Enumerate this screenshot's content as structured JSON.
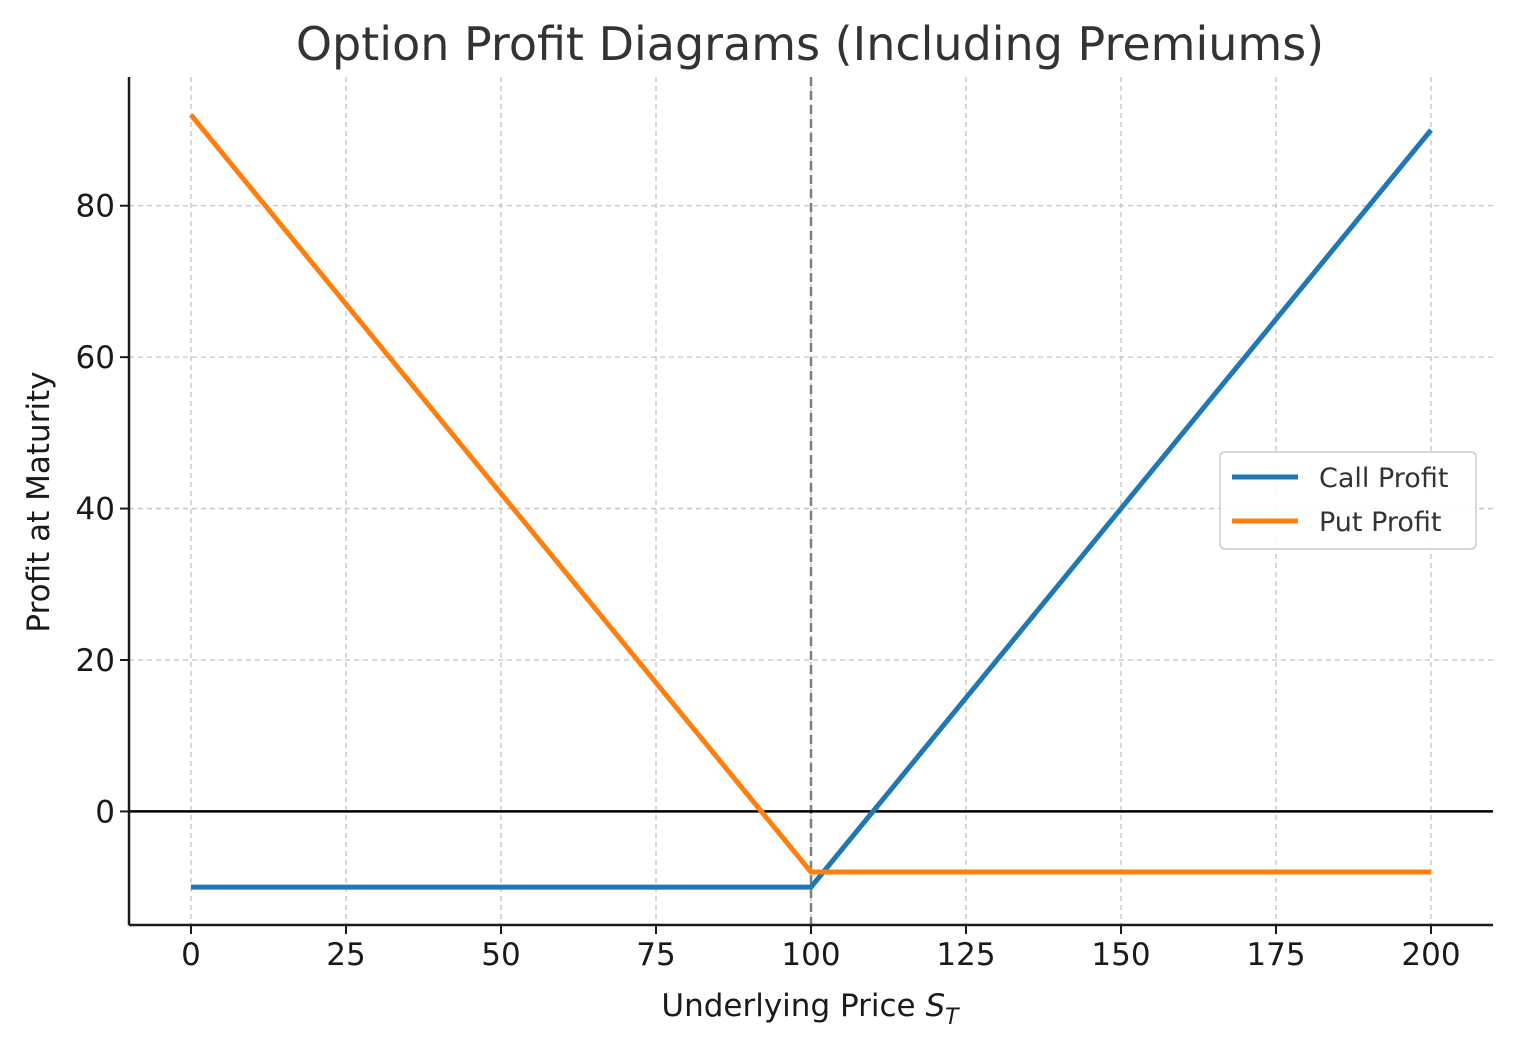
{
  "chart_data": {
    "type": "line",
    "title": "Option Profit Diagrams (Including Premiums)",
    "xlabel_main": "Underlying Price ",
    "xlabel_symbol": "S",
    "xlabel_subscript": "T",
    "ylabel": "Profit at Maturity",
    "xlim": [
      -10,
      210
    ],
    "ylim": [
      -15,
      97
    ],
    "x_ticks": [
      0,
      25,
      50,
      75,
      100,
      125,
      150,
      175,
      200
    ],
    "y_ticks": [
      0,
      20,
      40,
      60,
      80
    ],
    "grid": true,
    "strike_line_x": 100,
    "zero_line_y": 0,
    "legend_position": "center-right",
    "series": [
      {
        "name": "Call Profit",
        "color": "#1f77b4",
        "x": [
          0,
          100,
          200
        ],
        "y": [
          -10,
          -10,
          90
        ]
      },
      {
        "name": "Put Profit",
        "color": "#ff7f0e",
        "x": [
          0,
          100,
          200
        ],
        "y": [
          92,
          -8,
          -8
        ]
      }
    ]
  }
}
